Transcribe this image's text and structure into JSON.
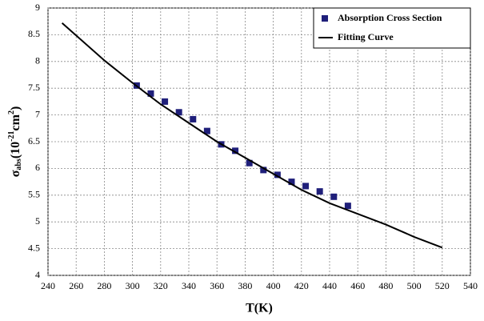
{
  "chart_data": {
    "type": "scatter",
    "x_label": "T(K)",
    "y_label_parts": [
      "σ",
      "abs",
      "(10",
      "-21",
      "cm",
      "2",
      ")"
    ],
    "xlim": [
      240,
      540
    ],
    "xticks": [
      240,
      260,
      280,
      300,
      320,
      340,
      360,
      380,
      400,
      420,
      440,
      460,
      480,
      500,
      520,
      540
    ],
    "ylim": [
      4,
      9
    ],
    "yticks": [
      4,
      4.5,
      5,
      5.5,
      6,
      6.5,
      7,
      7.5,
      8,
      8.5,
      9
    ],
    "grid": true,
    "legend": "top-right",
    "series": [
      {
        "name": "Absorption Cross Section",
        "type": "scatter",
        "color": "#1f1f7a",
        "x": [
          303,
          313,
          323,
          333,
          343,
          353,
          363,
          373,
          383,
          393,
          403,
          413,
          423,
          433,
          443,
          453
        ],
        "values": [
          7.55,
          7.4,
          7.25,
          7.05,
          6.92,
          6.7,
          6.45,
          6.33,
          6.1,
          5.97,
          5.88,
          5.75,
          5.67,
          5.57,
          5.47,
          5.3
        ]
      },
      {
        "name": "Fitting Curve",
        "type": "line",
        "color": "#000000",
        "x": [
          250,
          280,
          300,
          320,
          340,
          360,
          380,
          400,
          420,
          440,
          460,
          480,
          500,
          520
        ],
        "values": [
          8.72,
          8.02,
          7.6,
          7.2,
          6.85,
          6.5,
          6.2,
          5.9,
          5.6,
          5.35,
          5.15,
          4.95,
          4.72,
          4.52
        ]
      }
    ]
  }
}
